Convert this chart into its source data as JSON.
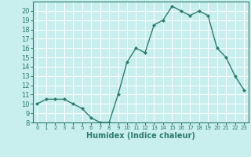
{
  "x": [
    0,
    1,
    2,
    3,
    4,
    5,
    6,
    7,
    8,
    9,
    10,
    11,
    12,
    13,
    14,
    15,
    16,
    17,
    18,
    19,
    20,
    21,
    22,
    23
  ],
  "y": [
    10,
    10.5,
    10.5,
    10.5,
    10,
    9.5,
    8.5,
    8,
    8,
    11,
    14.5,
    16,
    15.5,
    18.5,
    19,
    20.5,
    20,
    19.5,
    20,
    19.5,
    16,
    15,
    13,
    11.5
  ],
  "line_color": "#2e7d6e",
  "marker_color": "#2e7d6e",
  "bg_color": "#c8eeee",
  "grid_color": "#ffffff",
  "xlabel": "Humidex (Indice chaleur)",
  "xlabel_fontsize": 7,
  "tick_fontsize": 6,
  "ylim": [
    8,
    21
  ],
  "xlim": [
    -0.5,
    23.5
  ],
  "yticks": [
    8,
    9,
    10,
    11,
    12,
    13,
    14,
    15,
    16,
    17,
    18,
    19,
    20
  ],
  "xticks": [
    0,
    1,
    2,
    3,
    4,
    5,
    6,
    7,
    8,
    9,
    10,
    11,
    12,
    13,
    14,
    15,
    16,
    17,
    18,
    19,
    20,
    21,
    22,
    23
  ]
}
